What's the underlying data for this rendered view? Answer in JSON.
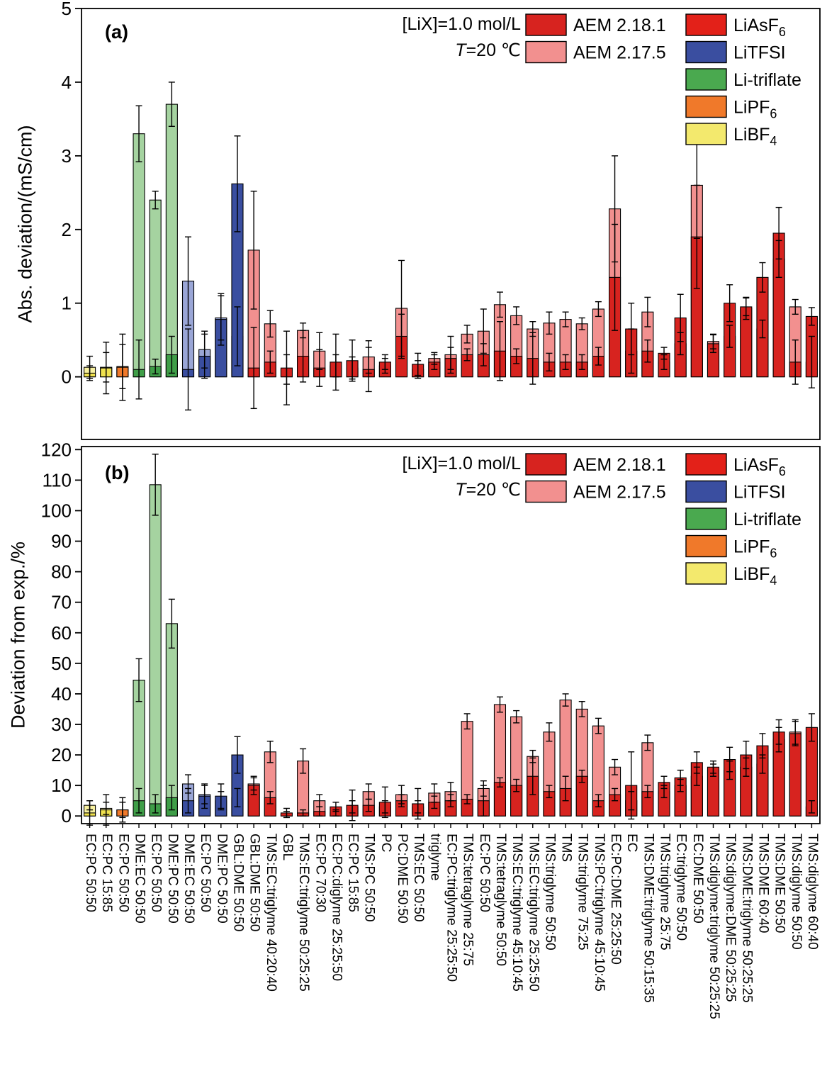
{
  "figure": {
    "annotation": {
      "line1": "[LiX]=1.0 mol/L",
      "line2_var": "T",
      "line2_rest": "=20 ℃"
    },
    "legend": {
      "series": [
        {
          "label": "AEM 2.18.1",
          "color": "#d7231f"
        },
        {
          "label": "AEM 2.17.5",
          "color": "#f2908f"
        }
      ],
      "salts": [
        {
          "main": "LiAsF",
          "sub": "6",
          "color": "#e32119"
        },
        {
          "main": "LiTFSI",
          "sub": "",
          "color": "#3a4ea0"
        },
        {
          "main": "Li-triflate",
          "sub": "",
          "color": "#4aa94f"
        },
        {
          "main": "LiPF",
          "sub": "6",
          "color": "#f0792a"
        },
        {
          "main": "LiBF",
          "sub": "4",
          "color": "#f3e96d"
        }
      ]
    },
    "salt_colors": {
      "LiAsF6": {
        "dark": "#d7231f",
        "light": "#f2908f"
      },
      "LiTFSI": {
        "dark": "#3a4ea0",
        "light": "#9aa6d6"
      },
      "Li-triflate": {
        "dark": "#3f9e48",
        "light": "#a5d3a0"
      },
      "LiPF6": {
        "dark": "#f0792a",
        "light": "#f8b37c"
      },
      "LiBF4": {
        "dark": "#efe14e",
        "light": "#f8f1a0"
      }
    }
  },
  "chart_data": {
    "type": "bar",
    "categories": [
      "EC:PC 50:50",
      "EC:PC 15:85",
      "EC:PC 50:50",
      "DME:EC 50:50",
      "EC:PC 50:50",
      "DME:PC 50:50",
      "DME:EC 50:50",
      "EC:PC 50:50",
      "DME:PC 50:50",
      "GBL:DME 50:50",
      "GBL:DME 50:50",
      "TMS:EC:triglyme 40:20:40",
      "GBL",
      "TMS:EC:triglyme 50:25:25",
      "EC:PC 70:30",
      "EC:PC:diglyme 25:25:50",
      "EC:PC 15:85",
      "TMS:PC 50:50",
      "PC",
      "PC:DME 50:50",
      "TMS:EC 50:50",
      "triglyme",
      "EC:PC:triglyme 25:25:50",
      "TMS:tetraglyme 25:75",
      "EC:PC 50:50",
      "TMS:tetraglyme 50:50",
      "TMS:EC:triglyme 45:10:45",
      "TMS:EC:triglyme 25:25:50",
      "TMS:triglyme 50:50",
      "TMS",
      "TMS:triglyme 75:25",
      "TMS:PC:triglyme 45:10:45",
      "EC:PC:DME 25:25:50",
      "EC",
      "TMS:DME:triglyme 50:15:35",
      "TMS:triglyme 25:75",
      "EC:triglyme 50:50",
      "EC:DME 50:50",
      "TMS:diglyme:triglyme 50:25:25",
      "TMS:diglyme:DME 50:25:25",
      "TMS:DME:triglyme 50:25:25",
      "TMS:DME 60:40",
      "TMS:DME 50:50",
      "TMS:diglyme 50:50",
      "TMS:diglyme 60:40"
    ],
    "salts": [
      "LiBF4",
      "LiBF4",
      "LiPF6",
      "Li-triflate",
      "Li-triflate",
      "Li-triflate",
      "LiTFSI",
      "LiTFSI",
      "LiTFSI",
      "LiTFSI",
      "LiAsF6",
      "LiAsF6",
      "LiAsF6",
      "LiAsF6",
      "LiAsF6",
      "LiAsF6",
      "LiAsF6",
      "LiAsF6",
      "LiAsF6",
      "LiAsF6",
      "LiAsF6",
      "LiAsF6",
      "LiAsF6",
      "LiAsF6",
      "LiAsF6",
      "LiAsF6",
      "LiAsF6",
      "LiAsF6",
      "LiAsF6",
      "LiAsF6",
      "LiAsF6",
      "LiAsF6",
      "LiAsF6",
      "LiAsF6",
      "LiAsF6",
      "LiAsF6",
      "LiAsF6",
      "LiAsF6",
      "LiAsF6",
      "LiAsF6",
      "LiAsF6",
      "LiAsF6",
      "LiAsF6",
      "LiAsF6",
      "LiAsF6"
    ],
    "panels": [
      {
        "id": "a",
        "tag": "(a)",
        "ylabel": "Abs. deviation/(mS/cm)",
        "ylim": [
          0,
          5
        ],
        "yticks": [
          0,
          1,
          2,
          3,
          4,
          5
        ],
        "series": [
          {
            "name": "AEM 2.18.1",
            "shade": "dark",
            "values": [
              0.05,
              0.12,
              0.13,
              0.1,
              0.14,
              0.3,
              0.1,
              0.28,
              0.78,
              2.62,
              0.12,
              0.2,
              0.12,
              0.28,
              0.12,
              0.2,
              0.22,
              0.1,
              0.2,
              0.55,
              0.17,
              0.2,
              0.25,
              0.3,
              0.3,
              0.35,
              0.28,
              0.25,
              0.2,
              0.2,
              0.2,
              0.28,
              1.35,
              0.65,
              0.35,
              0.32,
              0.8,
              1.9,
              0.45,
              1.0,
              0.95,
              1.35,
              1.95,
              0.2,
              0.82
            ],
            "errors": [
              0.1,
              0.35,
              0.45,
              0.4,
              0.1,
              0.25,
              0.55,
              0.3,
              0.35,
              0.65,
              0.55,
              0.15,
              0.5,
              0.35,
              0.25,
              0.38,
              0.28,
              0.3,
              0.1,
              0.3,
              0.15,
              0.1,
              0.15,
              0.08,
              0.15,
              0.4,
              0.1,
              0.35,
              0.12,
              0.1,
              0.1,
              0.12,
              0.72,
              0.35,
              0.15,
              0.08,
              0.32,
              0.7,
              0.12,
              0.25,
              0.12,
              0.2,
              0.35,
              0.3,
              0.12
            ]
          },
          {
            "name": "AEM 2.17.5",
            "shade": "light",
            "values": [
              0.13,
              0.13,
              0.14,
              3.3,
              2.4,
              3.7,
              1.3,
              0.37,
              0.8,
              0.55,
              1.72,
              0.72,
              0.1,
              0.63,
              0.35,
              0.15,
              0.12,
              0.27,
              0.15,
              0.93,
              0.1,
              0.25,
              0.3,
              0.58,
              0.62,
              0.98,
              0.83,
              0.65,
              0.73,
              0.78,
              0.72,
              0.92,
              2.28,
              0.35,
              0.88,
              0.2,
              0.45,
              2.6,
              0.48,
              0.55,
              0.93,
              0.65,
              1.6,
              0.95,
              0.2
            ],
            "errors": [
              0.15,
              0.2,
              0.3,
              0.38,
              0.12,
              0.3,
              0.6,
              0.25,
              0.3,
              0.4,
              0.8,
              0.18,
              0.2,
              0.1,
              0.25,
              0.15,
              0.15,
              0.22,
              0.1,
              0.65,
              0.12,
              0.08,
              0.25,
              0.12,
              0.3,
              0.17,
              0.12,
              0.1,
              0.15,
              0.1,
              0.08,
              0.1,
              0.72,
              0.3,
              0.2,
              0.1,
              0.15,
              0.72,
              0.1,
              0.15,
              0.15,
              0.12,
              0.25,
              0.1,
              0.35
            ]
          }
        ]
      },
      {
        "id": "b",
        "tag": "(b)",
        "ylabel": "Deviation from exp./%",
        "ylim": [
          0,
          120
        ],
        "yticks": [
          0,
          10,
          20,
          30,
          40,
          50,
          60,
          70,
          80,
          90,
          100,
          110,
          120
        ],
        "series": [
          {
            "name": "AEM 2.18.1",
            "shade": "dark",
            "values": [
              1.0,
              2.0,
              2.0,
              5.0,
              4.0,
              6.0,
              5.0,
              6.5,
              6.5,
              20.0,
              10.0,
              6.0,
              1.0,
              1.0,
              1.5,
              3.0,
              3.5,
              3.5,
              4.5,
              5.0,
              4.0,
              4.5,
              5.0,
              5.5,
              5.0,
              11.0,
              10.0,
              13.0,
              8.0,
              9.0,
              13.0,
              5.0,
              7.0,
              10.0,
              8.0,
              11.0,
              12.5,
              17.5,
              16.0,
              18.5,
              20.0,
              23.0,
              27.5,
              27.0,
              29.0
            ],
            "errors": [
              4.0,
              5.0,
              4.0,
              4.0,
              3.0,
              4.0,
              4.0,
              4.0,
              4.0,
              6.0,
              3.0,
              2.0,
              1.5,
              1.0,
              1.5,
              1.5,
              5.0,
              2.0,
              5.0,
              2.0,
              5.0,
              2.0,
              2.0,
              1.5,
              5.0,
              1.5,
              2.0,
              6.0,
              2.0,
              4.0,
              2.0,
              2.0,
              2.0,
              11.0,
              2.0,
              2.0,
              2.5,
              3.5,
              2.0,
              4.0,
              4.5,
              4.0,
              4.0,
              4.0,
              4.5
            ]
          },
          {
            "name": "AEM 2.17.5",
            "shade": "light",
            "values": [
              3.5,
              2.5,
              2.0,
              44.5,
              108.5,
              63.0,
              10.5,
              7.0,
              5.0,
              6.0,
              10.5,
              21.0,
              0.5,
              18.0,
              5.0,
              1.0,
              3.0,
              8.0,
              3.0,
              7.0,
              3.0,
              7.5,
              8.0,
              31.0,
              9.0,
              36.5,
              32.5,
              19.5,
              27.5,
              38.0,
              35.0,
              29.5,
              16.0,
              5.0,
              24.0,
              8.0,
              10.0,
              13.0,
              15.0,
              15.0,
              16.0,
              17.0,
              25.0,
              27.5,
              3.0
            ],
            "errors": [
              1.5,
              2.0,
              2.5,
              7.0,
              10.0,
              8.0,
              3.0,
              3.0,
              3.0,
              3.0,
              2.0,
              3.5,
              1.0,
              4.0,
              2.0,
              1.0,
              2.0,
              2.5,
              2.0,
              3.0,
              2.0,
              3.0,
              3.0,
              2.5,
              2.5,
              2.5,
              2.0,
              2.0,
              3.0,
              2.0,
              2.5,
              2.5,
              2.5,
              3.0,
              2.5,
              2.0,
              2.0,
              3.0,
              2.0,
              3.0,
              3.0,
              3.0,
              4.0,
              4.0,
              2.0
            ]
          }
        ]
      }
    ]
  }
}
